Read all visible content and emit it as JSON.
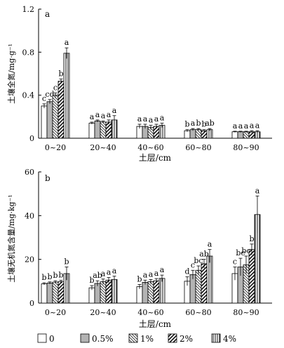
{
  "chart_data": [
    {
      "type": "bar",
      "panel_label": "a",
      "xlabel": "土层/cm",
      "ylabel": "土壤全氮/mg·g⁻¹",
      "ylim": [
        0,
        1.2
      ],
      "yticks": [
        "0",
        "0.4",
        "0.8",
        "1.2"
      ],
      "categories": [
        "0~20",
        "20~40",
        "40~60",
        "60~80",
        "80~90"
      ],
      "series": [
        {
          "name": "0",
          "values": [
            0.3,
            0.14,
            0.11,
            0.07,
            0.06
          ],
          "errors": [
            0.02,
            0.01,
            0.02,
            0.01,
            0.005
          ],
          "letters": [
            "c",
            "a",
            "a",
            "b",
            "a"
          ]
        },
        {
          "name": "0.5%",
          "values": [
            0.34,
            0.16,
            0.11,
            0.08,
            0.06
          ],
          "errors": [
            0.02,
            0.01,
            0.02,
            0.01,
            0.005
          ],
          "letters": [
            "cd",
            "a",
            "a",
            "a",
            "a"
          ]
        },
        {
          "name": "1%",
          "values": [
            0.4,
            0.15,
            0.1,
            0.08,
            0.06
          ],
          "errors": [
            0.02,
            0.01,
            0.02,
            0.01,
            0.005
          ],
          "letters": [
            "c",
            "a",
            "a",
            "b",
            "a"
          ]
        },
        {
          "name": "2%",
          "values": [
            0.53,
            0.15,
            0.11,
            0.07,
            0.06
          ],
          "errors": [
            0.02,
            0.02,
            0.02,
            0.01,
            0.01
          ],
          "letters": [
            "b",
            "a",
            "a",
            "b",
            "a"
          ]
        },
        {
          "name": "4%",
          "values": [
            0.79,
            0.17,
            0.12,
            0.08,
            0.06
          ],
          "errors": [
            0.05,
            0.04,
            0.02,
            0.01,
            0.01
          ],
          "letters": [
            "a",
            "a",
            "a",
            "ab",
            "a"
          ]
        }
      ]
    },
    {
      "type": "bar",
      "panel_label": "b",
      "xlabel": "土层/cm",
      "ylabel": "土壤无机氮含量/mg·kg⁻¹",
      "ylim": [
        0,
        60
      ],
      "yticks": [
        "0",
        "20",
        "40",
        "60"
      ],
      "categories": [
        "0~20",
        "20~40",
        "40~60",
        "60~80",
        "80~90"
      ],
      "series": [
        {
          "name": "0",
          "values": [
            8.8,
            7.0,
            7.5,
            10.0,
            13.5
          ],
          "errors": [
            0.5,
            1.0,
            1.0,
            2.0,
            3.0
          ],
          "letters": [
            "b",
            "b",
            "b",
            "d",
            "c"
          ]
        },
        {
          "name": "0.5%",
          "values": [
            9.2,
            9.0,
            9.5,
            13.0,
            16.5
          ],
          "errors": [
            0.5,
            1.2,
            1.0,
            2.0,
            4.0
          ],
          "letters": [
            "b",
            "ab",
            "a",
            "c",
            "bc"
          ]
        },
        {
          "name": "1%",
          "values": [
            9.6,
            9.8,
            9.8,
            15.0,
            17.5
          ],
          "errors": [
            0.6,
            1.2,
            1.0,
            2.0,
            4.0
          ],
          "letters": [
            "b",
            "a",
            "a",
            "bc",
            "bc"
          ]
        },
        {
          "name": "2%",
          "values": [
            9.8,
            10.5,
            10.2,
            18.0,
            24.5
          ],
          "errors": [
            0.6,
            1.2,
            1.0,
            2.0,
            2.5
          ],
          "letters": [
            "b",
            "a",
            "a",
            "ab",
            "b"
          ]
        },
        {
          "name": "4%",
          "values": [
            13.5,
            10.8,
            11.3,
            21.5,
            40.5
          ],
          "errors": [
            3.0,
            1.5,
            1.5,
            3.0,
            8.5
          ],
          "letters": [
            "b",
            "a",
            "a",
            "a",
            "a"
          ]
        }
      ]
    }
  ],
  "legend": [
    {
      "label": "0",
      "pattern": "none"
    },
    {
      "label": "0.5%",
      "pattern": "gray"
    },
    {
      "label": "1%",
      "pattern": "backslash"
    },
    {
      "label": "2%",
      "pattern": "slash"
    },
    {
      "label": "4%",
      "pattern": "vertical"
    }
  ],
  "colors": {
    "axis": "#000000",
    "gray_fill": "#b3b3b3",
    "hatch": "#222222",
    "bar_fill": "#ffffff"
  }
}
